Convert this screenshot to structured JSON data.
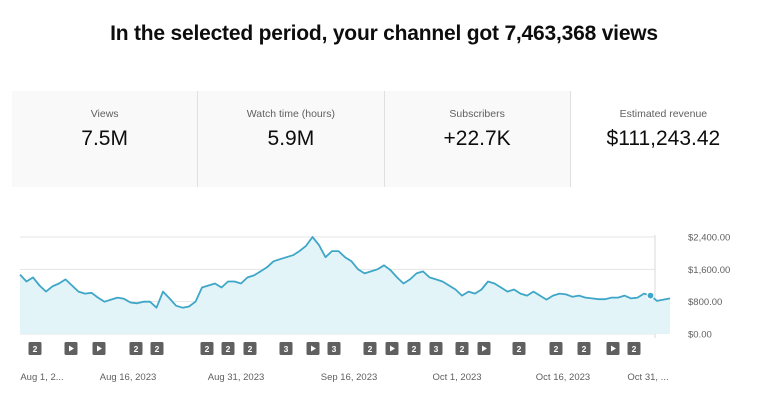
{
  "headline": "In the selected period, your channel got 7,463,368 views",
  "cards": [
    {
      "label": "Views",
      "value": "7.5M",
      "selected": false
    },
    {
      "label": "Watch time (hours)",
      "value": "5.9M",
      "selected": false
    },
    {
      "label": "Subscribers",
      "value": "+22.7K",
      "selected": false
    },
    {
      "label": "Estimated revenue",
      "value": "$111,243.42",
      "selected": true
    }
  ],
  "colors": {
    "line": "#3ea6c7",
    "fill": "#e3f4f9",
    "marker": "#606060"
  },
  "icons": {
    "play": "play-icon"
  },
  "chart_data": {
    "type": "area",
    "x_ticks": [
      "Aug 1, 2...",
      "Aug 16, 2023",
      "Aug 31, 2023",
      "Sep 16, 2023",
      "Oct 1, 2023",
      "Oct 16, 2023",
      "Oct 31, ..."
    ],
    "y_ticks": [
      "$2,400.00",
      "$1,600.00",
      "$800.00",
      "$0.00"
    ],
    "ylim": [
      0,
      2400
    ],
    "grid": true,
    "values": [
      1470,
      1300,
      1400,
      1200,
      1050,
      1180,
      1250,
      1350,
      1200,
      1050,
      1000,
      1020,
      900,
      800,
      850,
      900,
      870,
      780,
      760,
      800,
      800,
      650,
      1050,
      880,
      700,
      650,
      680,
      800,
      1150,
      1200,
      1250,
      1150,
      1300,
      1300,
      1250,
      1400,
      1450,
      1550,
      1650,
      1800,
      1850,
      1900,
      1950,
      2050,
      2180,
      2400,
      2200,
      1900,
      2050,
      2050,
      1900,
      1800,
      1600,
      1500,
      1550,
      1600,
      1700,
      1580,
      1400,
      1250,
      1350,
      1500,
      1550,
      1400,
      1350,
      1300,
      1200,
      1100,
      950,
      1050,
      1000,
      1100,
      1300,
      1250,
      1150,
      1050,
      1100,
      1000,
      950,
      1050,
      950,
      850,
      950,
      1000,
      980,
      920,
      950,
      900,
      880,
      860,
      860,
      900,
      900,
      950,
      880,
      900,
      1000,
      950,
      820,
      850,
      880
    ],
    "markers": [
      "2",
      "play",
      "play",
      "2",
      "2",
      "2",
      "2",
      "2",
      "3",
      "play",
      "3",
      "2",
      "play",
      "2",
      "3",
      "2",
      "play",
      "2",
      "2",
      "2",
      "play",
      "2"
    ],
    "marker_indices": [
      0,
      1,
      2,
      3,
      4,
      5,
      6,
      7,
      8,
      9,
      10,
      11,
      12,
      13,
      14,
      15,
      16,
      17,
      18,
      19,
      20,
      21
    ],
    "highlight_last": true
  }
}
